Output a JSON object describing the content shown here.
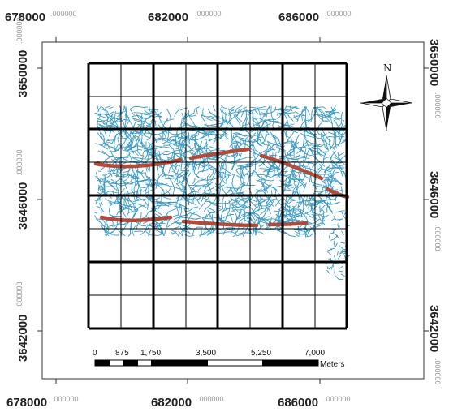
{
  "map": {
    "x_coords": [
      {
        "big": "678000",
        "small": ".000000"
      },
      {
        "big": "682000",
        "small": ".000000"
      },
      {
        "big": "686000",
        "small": ".000000"
      }
    ],
    "y_coords": [
      {
        "big": "3650000",
        "small": ".000000"
      },
      {
        "big": "3646000",
        "small": ".000000"
      },
      {
        "big": "3642000",
        "small": ".000000"
      }
    ],
    "north_label": "N",
    "scale": {
      "ticks": [
        "0",
        "875",
        "1,750",
        "3,500",
        "5,250",
        "7,000"
      ],
      "unit": "Meters"
    },
    "colors": {
      "drainage": "#3a9ac4",
      "fault": "#b24a3a",
      "grid": "#000000"
    }
  }
}
